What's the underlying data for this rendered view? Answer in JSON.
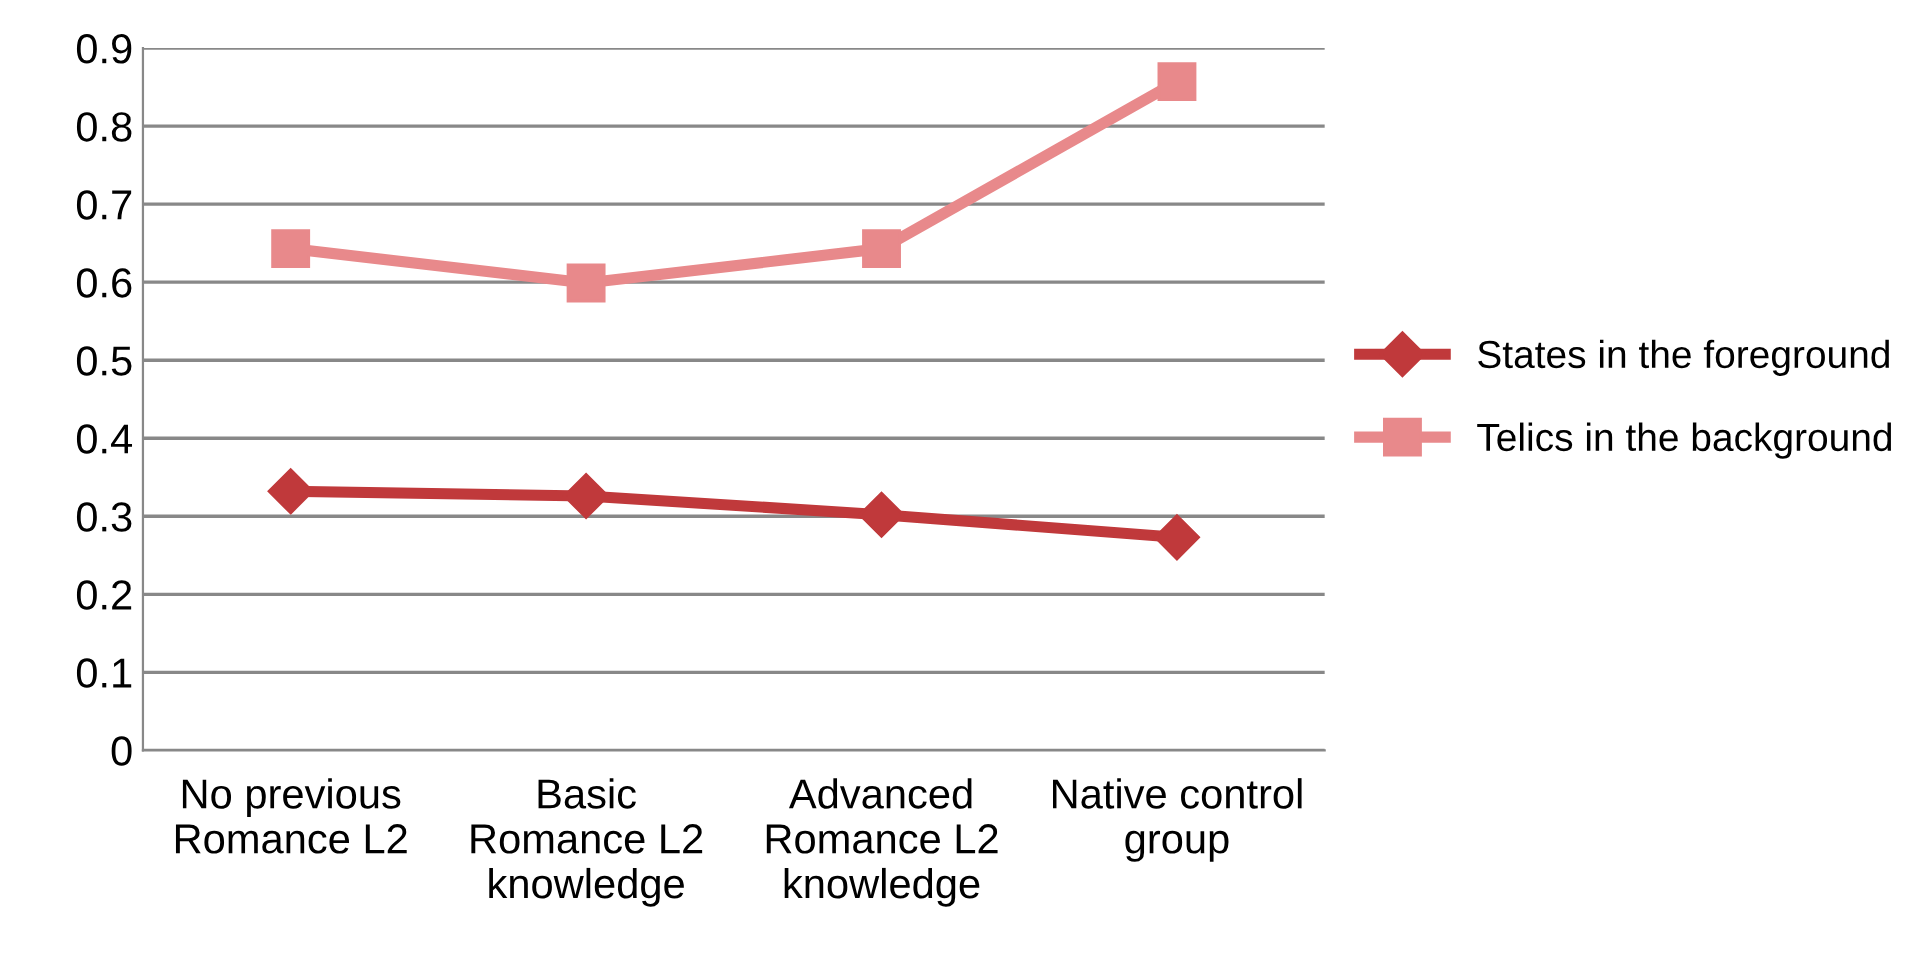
{
  "chart_data": {
    "type": "line",
    "categories": [
      "No previous\nRomance L2",
      "Basic\nRomance L2\nknowledge",
      "Advanced\nRomance L2\nknowledge",
      "Native control\ngroup"
    ],
    "series": [
      {
        "name": "States in the foreground",
        "color": "#c0393b",
        "marker": "diamond",
        "values": [
          0.332,
          0.326,
          0.302,
          0.273
        ]
      },
      {
        "name": "Telics in the background",
        "color": "#e8898b",
        "marker": "square",
        "values": [
          0.643,
          0.599,
          0.643,
          0.857
        ]
      }
    ],
    "ylim": [
      0,
      0.9
    ],
    "yticks": [
      0,
      0.1,
      0.2,
      0.3,
      0.4,
      0.5,
      0.6,
      0.7,
      0.8,
      0.9
    ],
    "grid": "y",
    "legend": "right",
    "line_style": "solid"
  }
}
